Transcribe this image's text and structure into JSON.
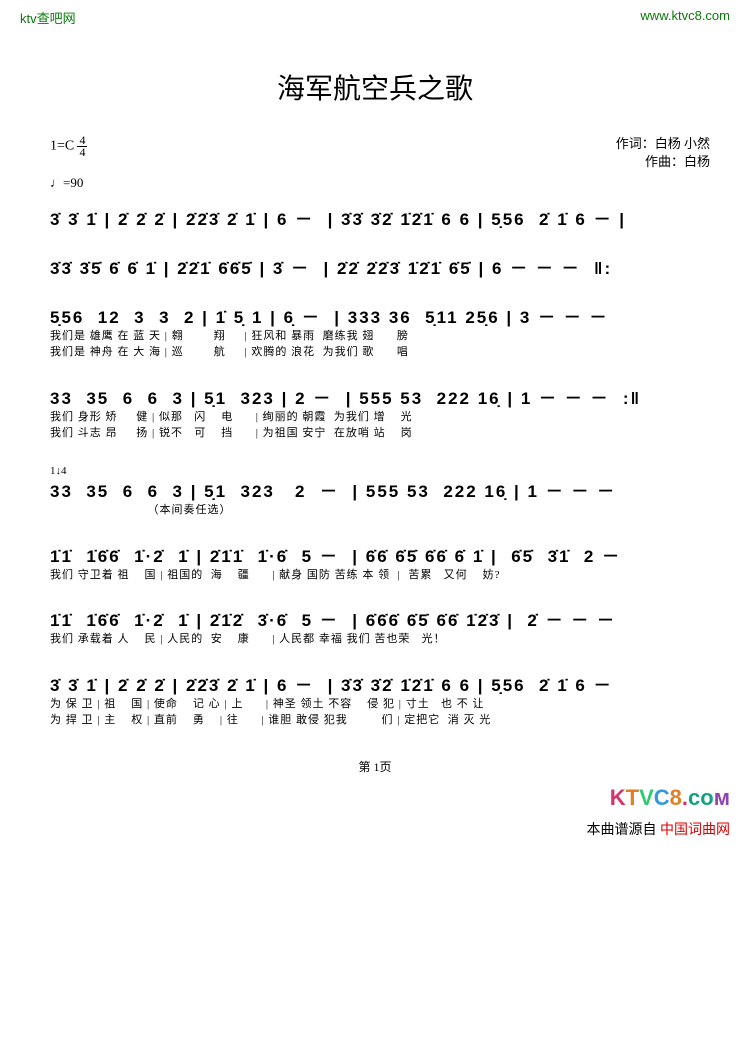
{
  "header": {
    "left": "ktv查吧网",
    "right": "www.ktvc8.com"
  },
  "title": "海军航空兵之歌",
  "keysig": "1=C",
  "timesig_top": "4",
  "timesig_bot": "4",
  "tempo": "♩=90",
  "credits": {
    "lyricist": "作词：白杨  小然",
    "composer": "作曲：白杨"
  },
  "lines": [
    {
      "notes": "3̇ 3̇ 1̇ | 2̇ 2̇ 2̇ | 2̇2̇3̇ 2̇ 1̇ | 6 －  | 3̇3̇ 3̇2̇ 1̇2̇1̇ 6 6 | 5̣56  2̇ 1̇ 6 － |"
    },
    {
      "notes": "3̇3̇ 3̇5̇ 6̇ 6̇ 1̇ | 2̇2̇1̇ 6̇6̇5̇ | 3̇ －  | 2̇2̇ 2̇2̇3̇ 1̇2̇1̇ 6̇5̇ | 6 － － －  ‖:"
    },
    {
      "notes": "5̣56  12  3  3  2 | 1̇ 5̣ 1 | 6̣ －  | 333 36  5̣11 25̣6 | 3 － － －",
      "lyr1": "我们是 雄鹰 在 蓝 天 | 翱        翔     | 狂风和 暴雨  磨练我 翅      膀",
      "lyr2": "我们是 神舟 在 大 海 | 巡        航     | 欢腾的 浪花  为我们 歌      唱"
    },
    {
      "notes": "33  35  6  6  3 | 5̣1  323 | 2 －  | 555 53  222 16̣ | 1 － － －  :‖",
      "lyr1": "我们 身形 矫     健 | 似那   闪    电      | 绚丽的 朝霞  为我们 增    光",
      "lyr2": "我们 斗志 昂     扬 | 锐不   可    挡      | 为祖国 安宁  在放哨 站    岗"
    },
    {
      "pre": "1↓4",
      "notes": "33  35  6  6  3 | 5̣1  323   2  －  | 555 53  222 16̣ | 1 － － －",
      "lyr1": "                          （本间奏任选）"
    },
    {
      "notes": "1̇1̇  1̇6̇6̇  1̇·2̇  1̇ | 2̇1̇1̇  1̇·6̇  5 －  | 6̇6̇ 6̇5̇ 6̇6̇ 6̇ 1̇ |  6̇5̇  3̇1̇  2 －",
      "lyr1": "我们 守卫着 祖    国 | 祖国的  海    疆      | 献身 国防 苦练 本 领  |  苦累   又何    妨?"
    },
    {
      "notes": "1̇1̇  1̇6̇6̇  1̇·2̇  1̇ | 2̇1̇2̇  3̇·6̇  5 －  | 6̇6̇6̇ 6̇5̇ 6̇6̇ 1̇2̇3̇ |  2̇ － － －",
      "lyr1": "我们 承载着 人    民 | 人民的  安    康      | 人民都 幸福 我们 苦也荣   光！"
    },
    {
      "notes": "3̇ 3̇ 1̇ | 2̇ 2̇ 2̇ | 2̇2̇3̇ 2̇ 1̇ | 6 －  | 3̇3̇ 3̇2̇ 1̇2̇1̇ 6 6 | 5̣56  2̇ 1̇ 6 －",
      "lyr1": "为 保 卫 | 祖    国 | 使命    记 心 | 上      | 神圣 领土 不容    侵 犯 | 寸土   也 不 让",
      "lyr2": "为 捍 卫 | 主    权 | 直前    勇    | 往      | 谁胆 敢侵 犯我         们 | 定把它  消 灭 光"
    }
  ],
  "pagenum": "第 1页",
  "footer": {
    "source_label": "本曲谱源自",
    "source_name": "中国词曲网"
  },
  "colors": {
    "green": "#0a7a0a",
    "red": "#d00",
    "bg": "#ffffff"
  }
}
